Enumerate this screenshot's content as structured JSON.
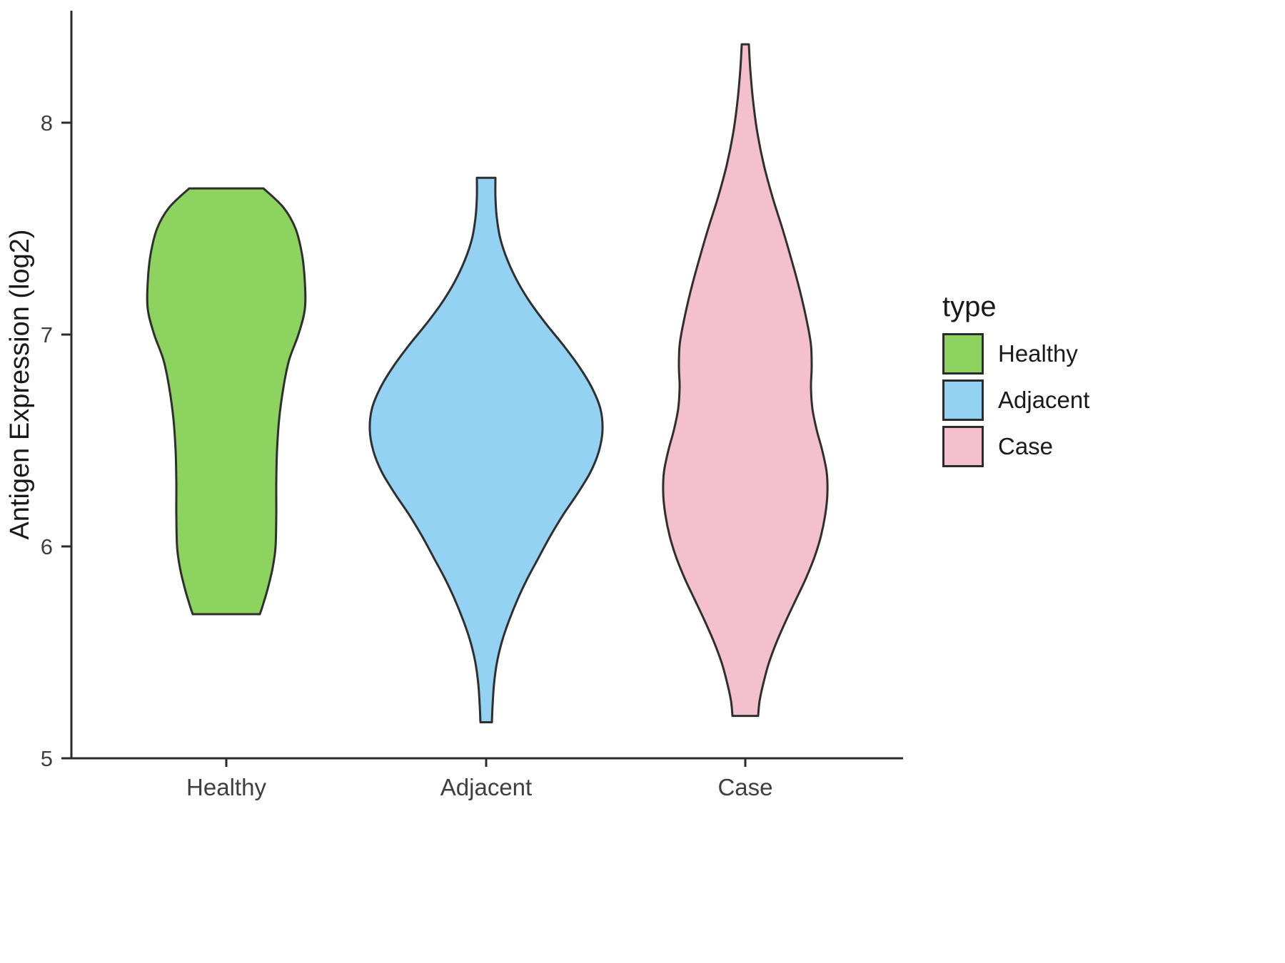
{
  "figure": {
    "background": "#ffffff",
    "axis_color": "#2b2b2b",
    "tick_text_color": "#3f3f3f",
    "title_text_color": "#191919",
    "outline_color": "#2f2f2f"
  },
  "chart_data": {
    "type": "violin",
    "title": "",
    "xlabel": "",
    "ylabel": "Antigen Expression (log2)",
    "ylim": [
      5,
      8.53
    ],
    "yticks": [
      5,
      6,
      7,
      8
    ],
    "grid": false,
    "categories": [
      "Healthy",
      "Adjacent",
      "Case"
    ],
    "legend": {
      "title": "type",
      "position": "right",
      "entries": [
        {
          "label": "Healthy",
          "color": "#8DD35F"
        },
        {
          "label": "Adjacent",
          "color": "#93D2F3"
        },
        {
          "label": "Case",
          "color": "#F5C0CD"
        }
      ]
    },
    "series": [
      {
        "name": "Healthy",
        "fill": "#8DD35F",
        "stroke": "#2f2f2f",
        "ymin": 5.68,
        "ymax": 7.69,
        "profile": [
          [
            7.69,
            52
          ],
          [
            7.6,
            80
          ],
          [
            7.5,
            97
          ],
          [
            7.38,
            106
          ],
          [
            7.25,
            110
          ],
          [
            7.12,
            110
          ],
          [
            7.0,
            101
          ],
          [
            6.88,
            88
          ],
          [
            6.75,
            80
          ],
          [
            6.6,
            74
          ],
          [
            6.45,
            71
          ],
          [
            6.3,
            70
          ],
          [
            6.15,
            70
          ],
          [
            6.0,
            69
          ],
          [
            5.9,
            65
          ],
          [
            5.8,
            58
          ],
          [
            5.72,
            51
          ],
          [
            5.68,
            47
          ]
        ]
      },
      {
        "name": "Adjacent",
        "fill": "#93D2F3",
        "stroke": "#2f2f2f",
        "ymin": 5.17,
        "ymax": 7.74,
        "profile": [
          [
            7.74,
            13
          ],
          [
            7.65,
            13
          ],
          [
            7.55,
            15
          ],
          [
            7.45,
            20
          ],
          [
            7.35,
            30
          ],
          [
            7.25,
            44
          ],
          [
            7.15,
            62
          ],
          [
            7.05,
            84
          ],
          [
            6.95,
            108
          ],
          [
            6.85,
            130
          ],
          [
            6.75,
            148
          ],
          [
            6.65,
            160
          ],
          [
            6.55,
            163
          ],
          [
            6.45,
            158
          ],
          [
            6.35,
            146
          ],
          [
            6.25,
            128
          ],
          [
            6.15,
            108
          ],
          [
            6.05,
            90
          ],
          [
            5.95,
            74
          ],
          [
            5.85,
            58
          ],
          [
            5.75,
            44
          ],
          [
            5.65,
            32
          ],
          [
            5.55,
            22
          ],
          [
            5.45,
            15
          ],
          [
            5.35,
            11
          ],
          [
            5.25,
            9
          ],
          [
            5.17,
            8
          ]
        ]
      },
      {
        "name": "Case",
        "fill": "#F5C0CD",
        "stroke": "#2f2f2f",
        "ymin": 5.2,
        "ymax": 8.37,
        "profile": [
          [
            8.37,
            5
          ],
          [
            8.25,
            7
          ],
          [
            8.1,
            11
          ],
          [
            7.95,
            17
          ],
          [
            7.8,
            26
          ],
          [
            7.65,
            38
          ],
          [
            7.5,
            52
          ],
          [
            7.35,
            65
          ],
          [
            7.2,
            77
          ],
          [
            7.05,
            87
          ],
          [
            6.95,
            92
          ],
          [
            6.85,
            93
          ],
          [
            6.75,
            92
          ],
          [
            6.65,
            94
          ],
          [
            6.55,
            100
          ],
          [
            6.45,
            108
          ],
          [
            6.35,
            114
          ],
          [
            6.25,
            115
          ],
          [
            6.15,
            112
          ],
          [
            6.05,
            106
          ],
          [
            5.95,
            97
          ],
          [
            5.85,
            85
          ],
          [
            5.75,
            71
          ],
          [
            5.65,
            57
          ],
          [
            5.55,
            44
          ],
          [
            5.45,
            33
          ],
          [
            5.35,
            25
          ],
          [
            5.27,
            20
          ],
          [
            5.2,
            18
          ]
        ]
      }
    ]
  }
}
